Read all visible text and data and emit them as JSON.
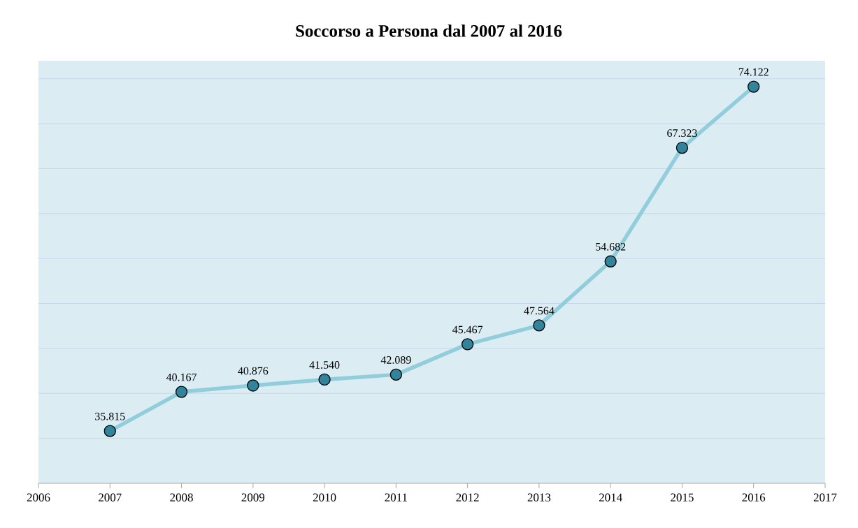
{
  "chart_data": {
    "type": "line",
    "title": "Soccorso a Persona dal 2007 al 2016",
    "x": [
      2007,
      2008,
      2009,
      2010,
      2011,
      2012,
      2013,
      2014,
      2015,
      2016
    ],
    "series": [
      {
        "color": "#92cddc",
        "values": [
          35815,
          40167,
          40876,
          41540,
          42089,
          45467,
          47564,
          54682,
          67323,
          74122
        ],
        "value_labels": [
          "35.815",
          "40.167",
          "40.876",
          "41.540",
          "42.089",
          "45.467",
          "47.564",
          "54.682",
          "67.323",
          "74.122"
        ]
      }
    ],
    "xlim": [
      2006,
      2017
    ],
    "xticks": [
      2006,
      2007,
      2008,
      2009,
      2010,
      2011,
      2012,
      2013,
      2014,
      2015,
      2016,
      2017
    ],
    "ylim": [
      30000,
      77000
    ],
    "yticks": [
      {
        "value": 35000,
        "label": null
      },
      {
        "value": 40000,
        "label": null
      },
      {
        "value": 45000,
        "label": null
      },
      {
        "value": 50000,
        "label": null
      },
      {
        "value": 55000,
        "label": null
      },
      {
        "value": 60000,
        "label": null
      },
      {
        "value": 65000,
        "label": null
      },
      {
        "value": 70000,
        "label": null
      },
      {
        "value": 75000,
        "label": null
      }
    ],
    "grid": "y",
    "tick_labels": "x",
    "marker": "circle",
    "line_style": "solid"
  }
}
